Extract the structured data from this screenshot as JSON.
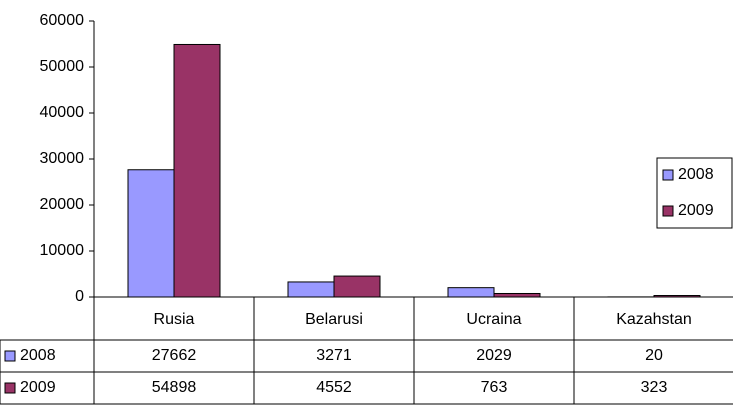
{
  "chart_data": {
    "type": "bar",
    "categories": [
      "Rusia",
      "Belarusi",
      "Ucraina",
      "Kazahstan"
    ],
    "series": [
      {
        "name": "2008",
        "color": "#9999ff",
        "values": [
          27662,
          3271,
          2029,
          20
        ]
      },
      {
        "name": "2009",
        "color": "#993366",
        "values": [
          54898,
          4552,
          763,
          323
        ]
      }
    ],
    "ylim": [
      0,
      60000
    ],
    "yticks": [
      0,
      10000,
      20000,
      30000,
      40000,
      50000,
      60000
    ],
    "legend": "right"
  }
}
